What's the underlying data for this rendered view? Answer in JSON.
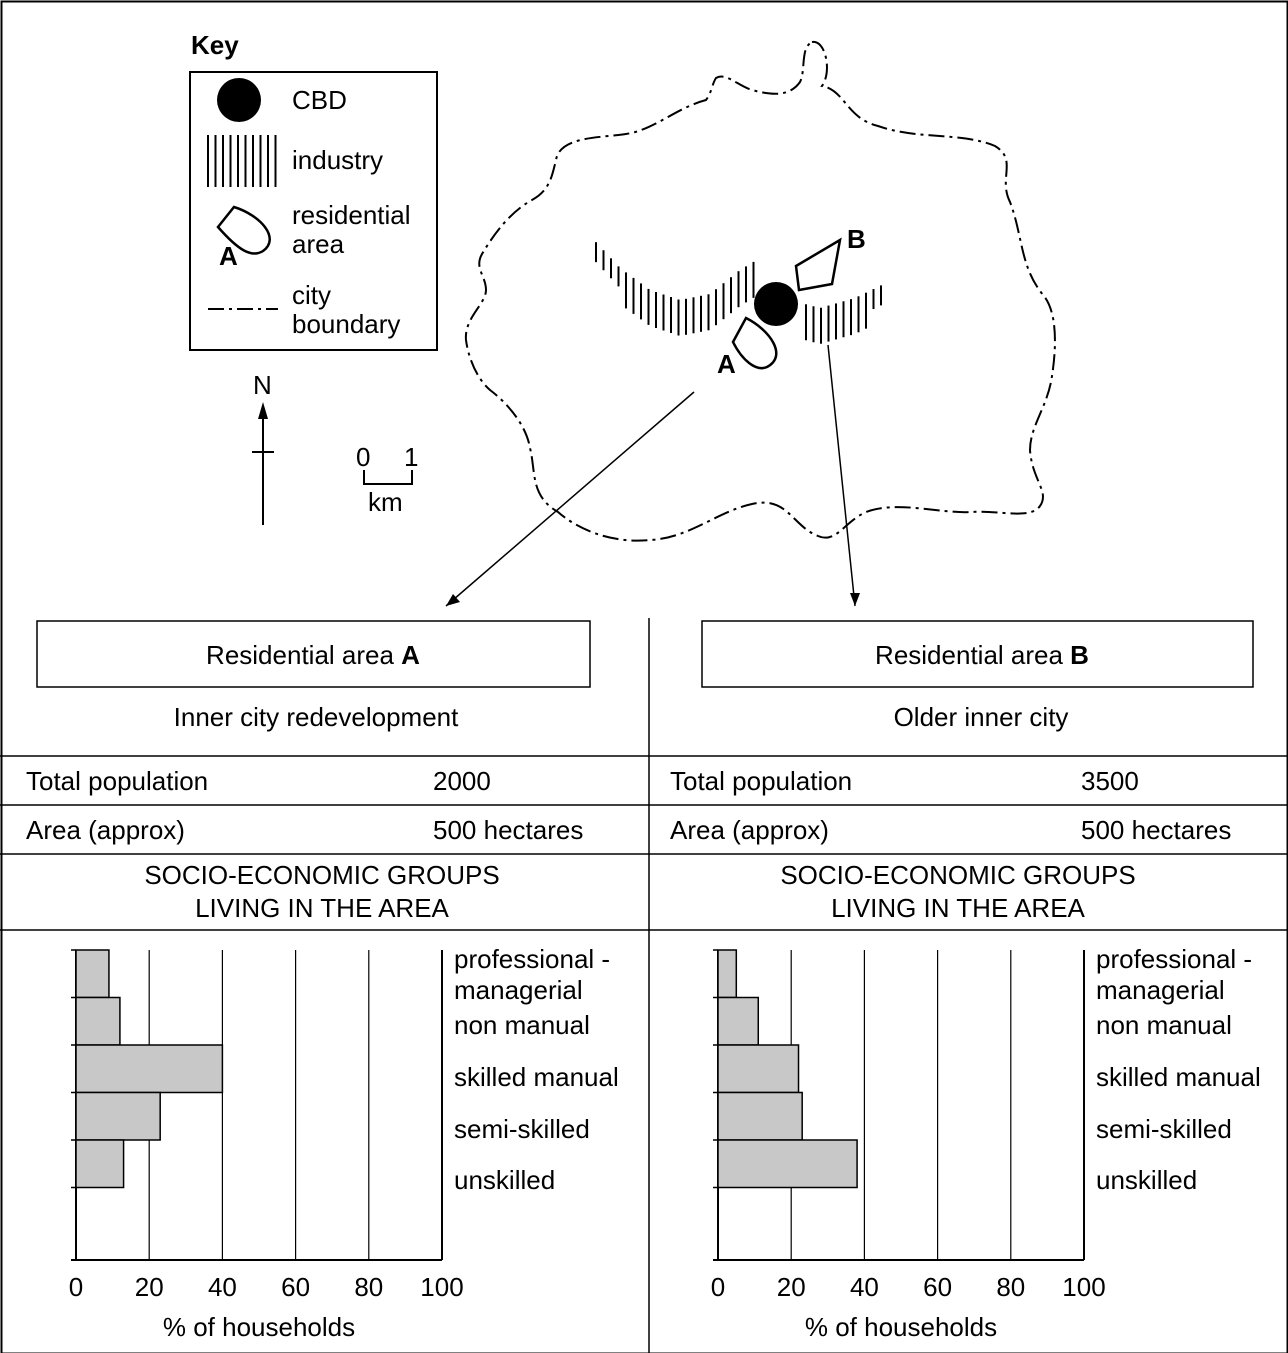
{
  "key": {
    "title": "Key",
    "items": [
      {
        "icon": "cbd-icon",
        "label": "CBD"
      },
      {
        "icon": "industry-icon",
        "label": "industry"
      },
      {
        "icon": "residential-area-icon",
        "label": [
          "residential",
          "area"
        ],
        "marker": "A"
      },
      {
        "icon": "city-boundary-icon",
        "label": [
          "city",
          "boundary"
        ]
      }
    ]
  },
  "north_arrow": {
    "label": "N"
  },
  "scale_bar": {
    "start": "0",
    "end": "1",
    "unit": "km"
  },
  "map": {
    "label_a": "A",
    "label_b": "B"
  },
  "panels": [
    {
      "title_prefix": "Residential area ",
      "title_letter": "A",
      "subtitle": "Inner city redevelopment",
      "rows": [
        {
          "label": "Total population",
          "value": "2000"
        },
        {
          "label": "Area (approx)",
          "value": "500 hectares"
        }
      ],
      "groups_heading": [
        "SOCIO-ECONOMIC GROUPS",
        "LIVING IN THE AREA"
      ],
      "chart": {
        "xlabel": "% of households",
        "ticks": [
          "0",
          "20",
          "40",
          "60",
          "80",
          "100"
        ],
        "category_labels": [
          [
            "professional -",
            "managerial"
          ],
          [
            "non manual"
          ],
          [
            "skilled manual"
          ],
          [
            "semi-skilled"
          ],
          [
            "unskilled"
          ]
        ]
      }
    },
    {
      "title_prefix": "Residential area ",
      "title_letter": "B",
      "subtitle": "Older inner city",
      "rows": [
        {
          "label": "Total population",
          "value": "3500"
        },
        {
          "label": "Area (approx)",
          "value": "500 hectares"
        }
      ],
      "groups_heading": [
        "SOCIO-ECONOMIC GROUPS",
        "LIVING IN THE AREA"
      ],
      "chart": {
        "xlabel": "% of households",
        "ticks": [
          "0",
          "20",
          "40",
          "60",
          "80",
          "100"
        ],
        "category_labels": [
          [
            "professional -",
            "managerial"
          ],
          [
            "non manual"
          ],
          [
            "skilled manual"
          ],
          [
            "semi-skilled"
          ],
          [
            "unskilled"
          ]
        ]
      }
    }
  ],
  "chart_data": [
    {
      "type": "bar",
      "orientation": "horizontal",
      "categories": [
        "professional - managerial",
        "non manual",
        "skilled manual",
        "semi-skilled",
        "unskilled"
      ],
      "values": [
        9,
        12,
        40,
        23,
        13
      ],
      "xlabel": "% of households",
      "xlim": [
        0,
        100
      ],
      "bar_color": "#c8c8c8",
      "grid": true
    },
    {
      "type": "bar",
      "orientation": "horizontal",
      "categories": [
        "professional - managerial",
        "non manual",
        "skilled manual",
        "semi-skilled",
        "unskilled"
      ],
      "values": [
        5,
        11,
        22,
        23,
        38
      ],
      "xlabel": "% of households",
      "xlim": [
        0,
        100
      ],
      "bar_color": "#c8c8c8",
      "grid": true
    }
  ]
}
